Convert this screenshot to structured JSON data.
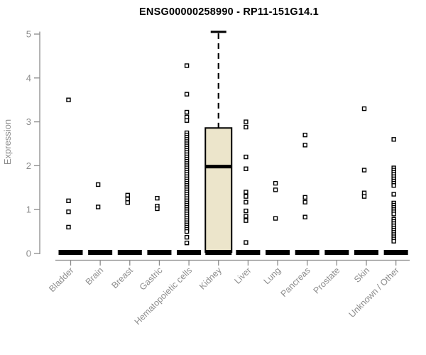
{
  "chart_data": {
    "type": "boxplot",
    "title": "ENSG00000258990 - RP11-151G14.1",
    "ylabel": "Expression",
    "xlabel": "",
    "ylim": [
      0,
      5
    ],
    "yticks": [
      0,
      1,
      2,
      3,
      4,
      5
    ],
    "grid": false,
    "legend": "none",
    "categories": [
      "Bladder",
      "Brain",
      "Breast",
      "Gastric",
      "Hematopoietic cells",
      "Kidney",
      "Liver",
      "Lung",
      "Pancreas",
      "Prostate",
      "Skin",
      "Unknown / Other"
    ],
    "boxes": [
      {
        "category": "Bladder",
        "q1": 0,
        "median": 0,
        "q3": 0,
        "whisker_low": 0,
        "whisker_high": 0
      },
      {
        "category": "Brain",
        "q1": 0,
        "median": 0,
        "q3": 0,
        "whisker_low": 0,
        "whisker_high": 0
      },
      {
        "category": "Breast",
        "q1": 0,
        "median": 0,
        "q3": 0,
        "whisker_low": 0,
        "whisker_high": 0
      },
      {
        "category": "Gastric",
        "q1": 0,
        "median": 0,
        "q3": 0,
        "whisker_low": 0,
        "whisker_high": 0
      },
      {
        "category": "Hematopoietic cells",
        "q1": 0,
        "median": 0,
        "q3": 0,
        "whisker_low": 0,
        "whisker_high": 0
      },
      {
        "category": "Kidney",
        "q1": 0,
        "median": 1.98,
        "q3": 2.86,
        "whisker_low": 0,
        "whisker_high": 5.05
      },
      {
        "category": "Liver",
        "q1": 0,
        "median": 0,
        "q3": 0,
        "whisker_low": 0,
        "whisker_high": 0
      },
      {
        "category": "Lung",
        "q1": 0,
        "median": 0,
        "q3": 0,
        "whisker_low": 0,
        "whisker_high": 0
      },
      {
        "category": "Pancreas",
        "q1": 0,
        "median": 0,
        "q3": 0,
        "whisker_low": 0,
        "whisker_high": 0
      },
      {
        "category": "Prostate",
        "q1": 0,
        "median": 0,
        "q3": 0,
        "whisker_low": 0,
        "whisker_high": 0
      },
      {
        "category": "Skin",
        "q1": 0,
        "median": 0,
        "q3": 0,
        "whisker_low": 0,
        "whisker_high": 0
      },
      {
        "category": "Unknown / Other",
        "q1": 0,
        "median": 0,
        "q3": 0,
        "whisker_low": 0,
        "whisker_high": 0
      }
    ],
    "points": {
      "Bladder": [
        3.5,
        1.2,
        0.95,
        0.6
      ],
      "Brain": [
        1.57,
        1.06
      ],
      "Breast": [
        1.33,
        1.24,
        1.16
      ],
      "Gastric": [
        1.26,
        1.08,
        1.02
      ],
      "Hematopoietic cells": [
        4.28,
        3.63,
        3.22,
        3.11,
        3.03,
        2.75,
        2.7,
        2.65,
        2.6,
        2.55,
        2.5,
        2.45,
        2.4,
        2.35,
        2.3,
        2.25,
        2.2,
        2.15,
        2.1,
        2.05,
        2.0,
        1.95,
        1.9,
        1.85,
        1.8,
        1.75,
        1.7,
        1.65,
        1.6,
        1.55,
        1.5,
        1.45,
        1.4,
        1.35,
        1.3,
        1.25,
        1.2,
        1.15,
        1.1,
        1.05,
        1.0,
        0.95,
        0.9,
        0.85,
        0.8,
        0.75,
        0.7,
        0.65,
        0.6,
        0.55,
        0.5,
        0.37,
        0.24
      ],
      "Kidney": [],
      "Liver": [
        3.0,
        2.88,
        2.2,
        1.93,
        1.4,
        1.3,
        1.17,
        0.97,
        0.85,
        0.75,
        0.25
      ],
      "Lung": [
        1.6,
        1.45,
        0.8
      ],
      "Pancreas": [
        2.7,
        2.47,
        1.28,
        1.17,
        0.83
      ],
      "Prostate": [],
      "Skin": [
        3.3,
        1.9,
        1.38,
        1.3
      ],
      "Unknown / Other": [
        2.6,
        1.95,
        1.9,
        1.85,
        1.8,
        1.75,
        1.7,
        1.65,
        1.6,
        1.55,
        1.35,
        1.15,
        1.1,
        1.05,
        1.0,
        0.95,
        0.9,
        0.78,
        0.73,
        0.68,
        0.63,
        0.58,
        0.53,
        0.48,
        0.43,
        0.38,
        0.33,
        0.28
      ]
    },
    "colors": {
      "box_fill": "#ece5cb",
      "box_stroke": "#000000",
      "median": "#000000",
      "zero_bar": "#000000",
      "point_stroke": "#000000",
      "point_fill": "#ffffff",
      "axis": "#8c8c8c",
      "tick_label": "#8c8c8c",
      "title": "#000000",
      "background": "#ffffff"
    }
  }
}
